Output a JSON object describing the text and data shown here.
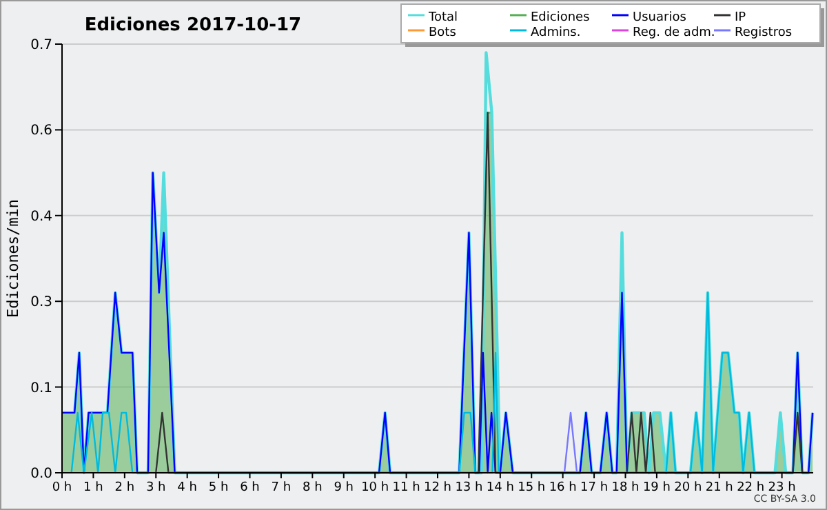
{
  "chart_data": {
    "type": "line",
    "title": "Ediciones  2017-10-17",
    "ylabel": "Ediciones/min",
    "xlim": [
      0,
      24
    ],
    "xticks": [
      {
        "value": 0,
        "label": "0 h"
      },
      {
        "value": 1,
        "label": "1 h"
      },
      {
        "value": 2,
        "label": "2 h"
      },
      {
        "value": 3,
        "label": "3 h"
      },
      {
        "value": 4,
        "label": "4 h"
      },
      {
        "value": 5,
        "label": "5 h"
      },
      {
        "value": 6,
        "label": "6 h"
      },
      {
        "value": 7,
        "label": "7 h"
      },
      {
        "value": 8,
        "label": "8 h"
      },
      {
        "value": 9,
        "label": "9 h"
      },
      {
        "value": 10,
        "label": "10 h"
      },
      {
        "value": 11,
        "label": "11 h"
      },
      {
        "value": 12,
        "label": "12 h"
      },
      {
        "value": 13,
        "label": "13 h"
      },
      {
        "value": 14,
        "label": "14 h"
      },
      {
        "value": 15,
        "label": "15 h"
      },
      {
        "value": 16,
        "label": "16 h"
      },
      {
        "value": 17,
        "label": "17 h"
      },
      {
        "value": 18,
        "label": "18 h"
      },
      {
        "value": 19,
        "label": "19 h"
      },
      {
        "value": 20,
        "label": "20 h"
      },
      {
        "value": 21,
        "label": "21 h"
      },
      {
        "value": 22,
        "label": "22 h"
      },
      {
        "value": 23,
        "label": "23 h"
      }
    ],
    "ylim": [
      0,
      0.7143
    ],
    "yticks": [
      {
        "value": 0,
        "label": "0.0"
      },
      {
        "value": 0.1429,
        "label": "0.1"
      },
      {
        "value": 0.2857,
        "label": "0.3"
      },
      {
        "value": 0.4286,
        "label": "0.4"
      },
      {
        "value": 0.5714,
        "label": "0.6"
      },
      {
        "value": 0.7143,
        "label": "0.7"
      }
    ],
    "grid": "y",
    "legend": "top right",
    "marker": "none",
    "line_style": "solid",
    "annotations": [
      "CC BY-SA 3.0"
    ],
    "series": [
      {
        "name": "Total",
        "color": "#55dddd",
        "x": [
          0,
          0.4,
          0.55,
          0.7,
          0.85,
          1.45,
          1.7,
          1.9,
          2.25,
          2.4,
          2.75,
          2.9,
          3.1,
          3.25,
          3.6,
          10.13,
          10.32,
          10.48,
          12.69,
          13.0,
          13.2,
          13.4,
          13.55,
          13.73,
          13.95,
          14.0,
          14.18,
          14.4,
          16.55,
          16.74,
          16.92,
          17.2,
          17.4,
          17.58,
          17.72,
          17.89,
          18.05,
          18.2,
          18.6,
          18.75,
          18.9,
          19.1,
          19.3,
          19.45,
          19.6,
          20.08,
          20.26,
          20.45,
          20.63,
          20.8,
          21.1,
          21.28,
          21.48,
          21.63,
          21.76,
          21.95,
          22.12,
          22.78,
          22.95,
          23.12,
          23.35,
          23.5,
          23.65,
          23.85,
          23.98
        ],
        "values": [
          0.1,
          0.1,
          0.2,
          0,
          0.1,
          0.1,
          0.3,
          0.2,
          0.2,
          0,
          0,
          0.5,
          0.3,
          0.5,
          0,
          0,
          0.1,
          0,
          0,
          0.4,
          0,
          0,
          0.7,
          0.6,
          0.1,
          0,
          0.1,
          0,
          0,
          0.1,
          0,
          0,
          0.1,
          0,
          0,
          0.4,
          0,
          0.1,
          0.1,
          0,
          0.1,
          0.1,
          0,
          0.1,
          0,
          0,
          0.1,
          0,
          0.3,
          0,
          0.2,
          0.2,
          0.1,
          0.1,
          0,
          0.1,
          0,
          0,
          0.1,
          0,
          0,
          0.2,
          0,
          0,
          0.1
        ]
      },
      {
        "name": "Ediciones",
        "type": "area",
        "color": "#55b055",
        "x": [
          0,
          0.4,
          0.55,
          0.7,
          0.85,
          1.45,
          1.7,
          1.9,
          2.25,
          2.4,
          2.75,
          2.9,
          3.1,
          3.25,
          3.6,
          10.13,
          10.32,
          10.48,
          12.69,
          13.0,
          13.2,
          13.4,
          13.55,
          13.73,
          13.95,
          14.0,
          14.18,
          14.4,
          16.55,
          16.74,
          16.92,
          17.2,
          17.4,
          17.58,
          17.72,
          17.89,
          18.05,
          18.2,
          18.6,
          18.75,
          18.9,
          19.1,
          19.3,
          19.45,
          19.6,
          20.08,
          20.26,
          20.45,
          20.63,
          20.8,
          21.1,
          21.28,
          21.48,
          21.63,
          21.76,
          21.95,
          22.12,
          22.78,
          22.95,
          23.12,
          23.35,
          23.5,
          23.65,
          23.85,
          23.98
        ],
        "values": [
          0.1,
          0.1,
          0.2,
          0,
          0.1,
          0.1,
          0.3,
          0.2,
          0.2,
          0,
          0,
          0.5,
          0.3,
          0.5,
          0,
          0,
          0.1,
          0,
          0,
          0.4,
          0,
          0,
          0.6,
          0.6,
          0.1,
          0,
          0.1,
          0,
          0,
          0.1,
          0,
          0,
          0.1,
          0,
          0,
          0.3,
          0,
          0.1,
          0.1,
          0,
          0.1,
          0.1,
          0,
          0.1,
          0,
          0,
          0.1,
          0,
          0.3,
          0,
          0.2,
          0.2,
          0.1,
          0.1,
          0,
          0.1,
          0,
          0,
          0.1,
          0,
          0,
          0.2,
          0,
          0,
          0.1
        ]
      },
      {
        "name": "Usuarios",
        "color": "#0000ff",
        "x": [
          0,
          0.4,
          0.55,
          0.7,
          0.85,
          1.45,
          1.7,
          1.9,
          2.25,
          2.4,
          2.75,
          2.9,
          3.1,
          3.25,
          3.6,
          10.13,
          10.32,
          10.48,
          12.69,
          13.0,
          13.2,
          13.33,
          13.45,
          13.6,
          13.72,
          13.85,
          14.0,
          14.18,
          14.4,
          16.55,
          16.74,
          16.92,
          17.2,
          17.4,
          17.58,
          17.72,
          17.89,
          18.05,
          23.35,
          23.5,
          23.65,
          23.85,
          23.98
        ],
        "values": [
          0.1,
          0.1,
          0.2,
          0,
          0.1,
          0.1,
          0.3,
          0.2,
          0.2,
          0,
          0,
          0.5,
          0.3,
          0.4,
          0,
          0,
          0.1,
          0,
          0,
          0.4,
          0,
          0,
          0.2,
          0,
          0.1,
          0,
          0,
          0.1,
          0,
          0,
          0.1,
          0,
          0,
          0.1,
          0,
          0,
          0.3,
          0,
          0,
          0.2,
          0,
          0,
          0.1
        ]
      },
      {
        "name": "IP",
        "color": "#333333",
        "x": [
          3.0,
          3.2,
          3.4,
          13.3,
          13.6,
          13.85,
          18.05,
          18.2,
          18.35,
          18.5,
          18.65,
          18.8,
          18.95,
          23.35,
          23.5,
          23.65
        ],
        "values": [
          0,
          0.1,
          0,
          0,
          0.6,
          0,
          0,
          0.1,
          0,
          0.1,
          0,
          0.1,
          0,
          0,
          0.1,
          0
        ]
      },
      {
        "name": "Bots",
        "color": "#ff9933"
      },
      {
        "name": "Admins.",
        "color": "#00bbdd",
        "x": [
          0.3,
          0.5,
          0.7,
          0.95,
          1.15,
          1.3,
          1.5,
          1.7,
          1.9,
          2.05,
          2.25,
          12.69,
          12.85,
          13.05,
          13.2,
          13.75,
          13.85,
          13.95,
          19.3,
          19.45,
          19.6,
          20.08,
          20.26,
          20.45,
          20.63,
          20.8,
          21.1,
          21.28,
          21.48,
          21.63,
          21.76,
          21.95,
          22.12
        ],
        "values": [
          0,
          0.1,
          0,
          0.1,
          0,
          0.1,
          0.1,
          0,
          0.1,
          0.1,
          0,
          0,
          0.1,
          0.1,
          0,
          0,
          0.2,
          0,
          0,
          0.1,
          0,
          0,
          0.1,
          0,
          0.3,
          0,
          0.2,
          0.2,
          0.1,
          0.1,
          0,
          0.1,
          0
        ]
      },
      {
        "name": "Reg. de adm.",
        "color": "#dd44dd"
      },
      {
        "name": "Registros",
        "color": "#7777ff",
        "x": [
          16.05,
          16.25,
          16.45
        ],
        "values": [
          0,
          0.1,
          0
        ]
      }
    ]
  }
}
